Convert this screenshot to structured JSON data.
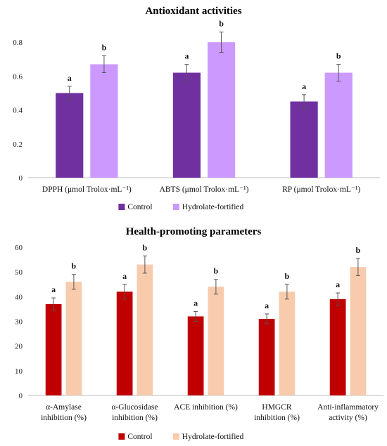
{
  "chart_data": [
    {
      "type": "bar",
      "title": "Antioxidant activities",
      "categories": [
        "DPPH (μmol Trolox·mL⁻¹)",
        "ABTS (μmol Trolox·mL⁻¹)",
        "RP (μmol Trolox·mL⁻¹)"
      ],
      "series": [
        {
          "name": "Control",
          "color": "#7030a0",
          "values": [
            0.5,
            0.62,
            0.45
          ],
          "errors": [
            0.04,
            0.05,
            0.04
          ],
          "letters": [
            "a",
            "a",
            "a"
          ]
        },
        {
          "name": "Hydrolate-fortified",
          "color": "#cc99ff",
          "values": [
            0.67,
            0.8,
            0.62
          ],
          "errors": [
            0.05,
            0.06,
            0.05
          ],
          "letters": [
            "b",
            "b",
            "b"
          ]
        }
      ],
      "yticks": [
        "0",
        "0.2",
        "0.4",
        "0.6",
        "0.8"
      ],
      "ylim": [
        0,
        0.9
      ],
      "grid": false,
      "legend_position": "bottom-center"
    },
    {
      "type": "bar",
      "title": "Health-promoting parameters",
      "categories": [
        [
          "α-Amylase",
          "inhibition (%)"
        ],
        [
          "α-Glucosidase",
          "inhibition (%)"
        ],
        [
          "ACE inhibition (%)"
        ],
        [
          "HMGCR",
          "inhibition (%)"
        ],
        [
          "Anti-inflammatory",
          "activity (%)"
        ]
      ],
      "series": [
        {
          "name": "Control",
          "color": "#c00000",
          "values": [
            37,
            42,
            32,
            31,
            39
          ],
          "errors": [
            2.5,
            3,
            2,
            2,
            2.5
          ],
          "letters": [
            "a",
            "a",
            "a",
            "a",
            "a"
          ]
        },
        {
          "name": "Hydrolate-fortified",
          "color": "#f8cbad",
          "values": [
            46,
            53,
            44,
            42,
            52
          ],
          "errors": [
            3,
            3.5,
            3,
            3,
            3.5
          ],
          "letters": [
            "b",
            "b",
            "b",
            "b",
            "b"
          ]
        }
      ],
      "yticks": [
        "0",
        "10",
        "20",
        "30",
        "40",
        "50",
        "60"
      ],
      "ylim": [
        0,
        60
      ],
      "grid": false,
      "legend_position": "bottom-center"
    }
  ]
}
